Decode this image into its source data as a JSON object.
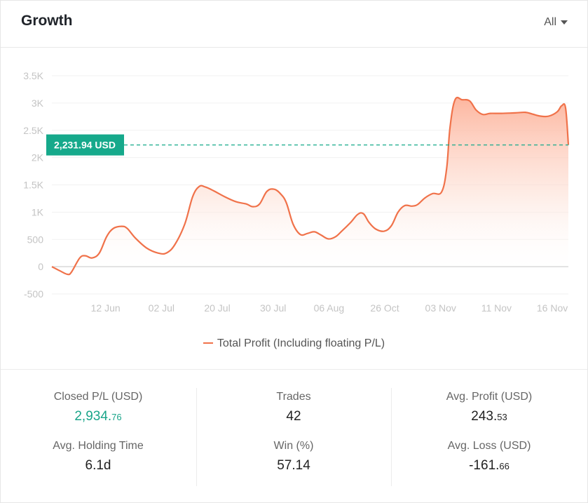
{
  "header": {
    "title": "Growth",
    "range_label": "All"
  },
  "legend": {
    "label": "Total Profit (Including floating P/L)"
  },
  "current_value_label": "2,231.94 USD",
  "colors": {
    "line": "#f0724a",
    "area_top": "#fdb59b",
    "reference": "#16a98b",
    "positive": "#1aa58a"
  },
  "chart_data": {
    "type": "area",
    "series": [
      {
        "name": "Total Profit (Including floating P/L)"
      }
    ],
    "y_ticks": [
      "3.5K",
      "3K",
      "2.5K",
      "2K",
      "1.5K",
      "1K",
      "500",
      "0",
      "-500"
    ],
    "y_tick_values": [
      3500,
      3000,
      2500,
      2000,
      1500,
      1000,
      500,
      0,
      -500
    ],
    "ylim": [
      -500,
      3500
    ],
    "x_ticks": [
      "12 Jun",
      "02 Jul",
      "20 Jul",
      "30 Jul",
      "06 Aug",
      "26 Oct",
      "03 Nov",
      "11 Nov",
      "16 Nov"
    ],
    "x_tick_positions": [
      1,
      2,
      3,
      4,
      5,
      6,
      7,
      8,
      9
    ],
    "xlim": [
      0,
      9.25
    ],
    "reference_line": 2231.94,
    "grid": true,
    "legend_position": "bottom",
    "points": [
      [
        0,
        0
      ],
      [
        0.15,
        -80
      ],
      [
        0.28,
        -140
      ],
      [
        0.35,
        -100
      ],
      [
        0.5,
        160
      ],
      [
        0.6,
        200
      ],
      [
        0.72,
        160
      ],
      [
        0.85,
        250
      ],
      [
        0.98,
        550
      ],
      [
        1.1,
        700
      ],
      [
        1.25,
        740
      ],
      [
        1.35,
        700
      ],
      [
        1.5,
        520
      ],
      [
        1.7,
        340
      ],
      [
        1.9,
        250
      ],
      [
        2.05,
        250
      ],
      [
        2.2,
        400
      ],
      [
        2.38,
        780
      ],
      [
        2.52,
        1280
      ],
      [
        2.64,
        1470
      ],
      [
        2.75,
        1460
      ],
      [
        2.9,
        1390
      ],
      [
        3.1,
        1280
      ],
      [
        3.3,
        1190
      ],
      [
        3.48,
        1150
      ],
      [
        3.6,
        1100
      ],
      [
        3.72,
        1150
      ],
      [
        3.85,
        1380
      ],
      [
        3.98,
        1420
      ],
      [
        4.1,
        1330
      ],
      [
        4.2,
        1170
      ],
      [
        4.32,
        780
      ],
      [
        4.45,
        590
      ],
      [
        4.58,
        610
      ],
      [
        4.7,
        640
      ],
      [
        4.82,
        580
      ],
      [
        4.95,
        510
      ],
      [
        5.08,
        550
      ],
      [
        5.2,
        660
      ],
      [
        5.35,
        810
      ],
      [
        5.48,
        960
      ],
      [
        5.58,
        970
      ],
      [
        5.68,
        810
      ],
      [
        5.8,
        690
      ],
      [
        5.95,
        650
      ],
      [
        6.08,
        750
      ],
      [
        6.2,
        1000
      ],
      [
        6.32,
        1120
      ],
      [
        6.45,
        1110
      ],
      [
        6.55,
        1140
      ],
      [
        6.68,
        1260
      ],
      [
        6.82,
        1340
      ],
      [
        6.98,
        1370
      ],
      [
        7.07,
        1800
      ],
      [
        7.13,
        2550
      ],
      [
        7.22,
        3060
      ],
      [
        7.35,
        3060
      ],
      [
        7.48,
        3040
      ],
      [
        7.6,
        2870
      ],
      [
        7.72,
        2790
      ],
      [
        7.85,
        2810
      ],
      [
        8.05,
        2810
      ],
      [
        8.3,
        2820
      ],
      [
        8.48,
        2830
      ],
      [
        8.6,
        2800
      ],
      [
        8.75,
        2760
      ],
      [
        8.9,
        2760
      ],
      [
        9.05,
        2840
      ],
      [
        9.13,
        2950
      ],
      [
        9.2,
        2910
      ],
      [
        9.25,
        2231.94
      ]
    ]
  },
  "stats": {
    "closed_pl": {
      "label": "Closed P/L (USD)",
      "int": "2,934.",
      "dec": "76"
    },
    "trades": {
      "label": "Trades",
      "value": "42"
    },
    "avg_profit": {
      "label": "Avg. Profit (USD)",
      "int": "243.",
      "dec": "53"
    },
    "avg_holding": {
      "label": "Avg. Holding Time",
      "value": "6.1d"
    },
    "win": {
      "label": "Win (%)",
      "value": "57.14"
    },
    "avg_loss": {
      "label": "Avg. Loss (USD)",
      "int": "-161.",
      "dec": "66"
    }
  }
}
